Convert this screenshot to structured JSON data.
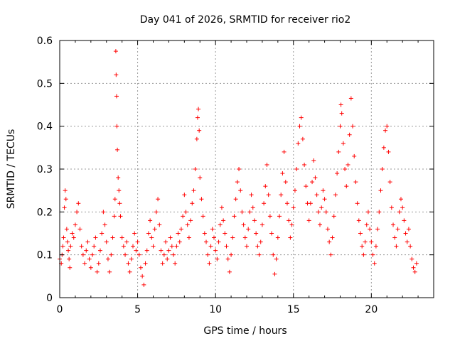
{
  "chart_data": {
    "type": "scatter",
    "title": "Day 041 of 2026, SRMTID for receiver rio2",
    "xlabel": "GPS time / hours",
    "ylabel": "SRMTID / TECUs",
    "xlim": [
      0,
      24
    ],
    "ylim": [
      0,
      0.6
    ],
    "xticks": [
      0,
      5,
      10,
      15,
      20
    ],
    "xtick_labels": [
      "0",
      "5",
      "10",
      "15",
      "20"
    ],
    "yticks": [
      0,
      0.1,
      0.2,
      0.3,
      0.4,
      0.5,
      0.6
    ],
    "ytick_labels": [
      "0",
      "0.1",
      "0.2",
      "0.3",
      "0.4",
      "0.5",
      "0.6"
    ],
    "grid": true,
    "marker": "+",
    "color": "#ff0000",
    "series": [
      {
        "name": "rio2",
        "points": [
          [
            0.0,
            0.09
          ],
          [
            0.1,
            0.08
          ],
          [
            0.15,
            0.1
          ],
          [
            0.2,
            0.12
          ],
          [
            0.25,
            0.14
          ],
          [
            0.3,
            0.21
          ],
          [
            0.35,
            0.25
          ],
          [
            0.4,
            0.23
          ],
          [
            0.45,
            0.16
          ],
          [
            0.5,
            0.13
          ],
          [
            0.55,
            0.11
          ],
          [
            0.6,
            0.09
          ],
          [
            0.65,
            0.07
          ],
          [
            0.7,
            0.12
          ],
          [
            0.8,
            0.15
          ],
          [
            0.9,
            0.14
          ],
          [
            1.0,
            0.17
          ],
          [
            1.1,
            0.2
          ],
          [
            1.2,
            0.22
          ],
          [
            1.3,
            0.16
          ],
          [
            1.4,
            0.12
          ],
          [
            1.5,
            0.1
          ],
          [
            1.6,
            0.08
          ],
          [
            1.7,
            0.11
          ],
          [
            1.8,
            0.13
          ],
          [
            1.9,
            0.09
          ],
          [
            2.0,
            0.07
          ],
          [
            2.1,
            0.1
          ],
          [
            2.2,
            0.12
          ],
          [
            2.3,
            0.14
          ],
          [
            2.4,
            0.06
          ],
          [
            2.5,
            0.08
          ],
          [
            2.6,
            0.11
          ],
          [
            2.7,
            0.15
          ],
          [
            2.8,
            0.2
          ],
          [
            2.9,
            0.17
          ],
          [
            3.0,
            0.13
          ],
          [
            3.1,
            0.09
          ],
          [
            3.2,
            0.06
          ],
          [
            3.3,
            0.1
          ],
          [
            3.4,
            0.14
          ],
          [
            3.5,
            0.19
          ],
          [
            3.55,
            0.23
          ],
          [
            3.6,
            0.575
          ],
          [
            3.62,
            0.52
          ],
          [
            3.65,
            0.47
          ],
          [
            3.67,
            0.4
          ],
          [
            3.7,
            0.345
          ],
          [
            3.75,
            0.28
          ],
          [
            3.8,
            0.25
          ],
          [
            3.85,
            0.22
          ],
          [
            3.9,
            0.19
          ],
          [
            4.0,
            0.14
          ],
          [
            4.1,
            0.12
          ],
          [
            4.2,
            0.1
          ],
          [
            4.3,
            0.13
          ],
          [
            4.4,
            0.08
          ],
          [
            4.5,
            0.06
          ],
          [
            4.6,
            0.09
          ],
          [
            4.7,
            0.12
          ],
          [
            4.8,
            0.15
          ],
          [
            4.9,
            0.11
          ],
          [
            5.0,
            0.13
          ],
          [
            5.1,
            0.1
          ],
          [
            5.2,
            0.07
          ],
          [
            5.3,
            0.05
          ],
          [
            5.4,
            0.03
          ],
          [
            5.5,
            0.08
          ],
          [
            5.6,
            0.11
          ],
          [
            5.7,
            0.15
          ],
          [
            5.8,
            0.18
          ],
          [
            5.9,
            0.14
          ],
          [
            6.0,
            0.12
          ],
          [
            6.1,
            0.16
          ],
          [
            6.2,
            0.2
          ],
          [
            6.3,
            0.23
          ],
          [
            6.4,
            0.17
          ],
          [
            6.5,
            0.11
          ],
          [
            6.6,
            0.08
          ],
          [
            6.7,
            0.1
          ],
          [
            6.8,
            0.13
          ],
          [
            6.9,
            0.09
          ],
          [
            7.0,
            0.11
          ],
          [
            7.1,
            0.14
          ],
          [
            7.2,
            0.12
          ],
          [
            7.3,
            0.1
          ],
          [
            7.4,
            0.08
          ],
          [
            7.5,
            0.12
          ],
          [
            7.6,
            0.15
          ],
          [
            7.7,
            0.13
          ],
          [
            7.8,
            0.16
          ],
          [
            7.9,
            0.19
          ],
          [
            8.0,
            0.24
          ],
          [
            8.1,
            0.2
          ],
          [
            8.2,
            0.17
          ],
          [
            8.3,
            0.14
          ],
          [
            8.4,
            0.18
          ],
          [
            8.5,
            0.22
          ],
          [
            8.6,
            0.25
          ],
          [
            8.7,
            0.3
          ],
          [
            8.8,
            0.37
          ],
          [
            8.85,
            0.42
          ],
          [
            8.9,
            0.44
          ],
          [
            8.95,
            0.39
          ],
          [
            9.0,
            0.28
          ],
          [
            9.1,
            0.23
          ],
          [
            9.2,
            0.19
          ],
          [
            9.3,
            0.15
          ],
          [
            9.4,
            0.13
          ],
          [
            9.5,
            0.1
          ],
          [
            9.6,
            0.08
          ],
          [
            9.7,
            0.12
          ],
          [
            9.8,
            0.16
          ],
          [
            9.9,
            0.14
          ],
          [
            10.0,
            0.11
          ],
          [
            10.1,
            0.09
          ],
          [
            10.2,
            0.13
          ],
          [
            10.3,
            0.17
          ],
          [
            10.4,
            0.21
          ],
          [
            10.5,
            0.18
          ],
          [
            10.6,
            0.15
          ],
          [
            10.7,
            0.12
          ],
          [
            10.8,
            0.09
          ],
          [
            10.9,
            0.06
          ],
          [
            11.0,
            0.1
          ],
          [
            11.1,
            0.14
          ],
          [
            11.2,
            0.19
          ],
          [
            11.3,
            0.23
          ],
          [
            11.4,
            0.27
          ],
          [
            11.5,
            0.3
          ],
          [
            11.6,
            0.25
          ],
          [
            11.7,
            0.2
          ],
          [
            11.8,
            0.17
          ],
          [
            11.9,
            0.14
          ],
          [
            12.0,
            0.12
          ],
          [
            12.1,
            0.16
          ],
          [
            12.2,
            0.2
          ],
          [
            12.3,
            0.24
          ],
          [
            12.4,
            0.21
          ],
          [
            12.5,
            0.18
          ],
          [
            12.6,
            0.15
          ],
          [
            12.7,
            0.12
          ],
          [
            12.8,
            0.1
          ],
          [
            12.9,
            0.13
          ],
          [
            13.0,
            0.17
          ],
          [
            13.1,
            0.22
          ],
          [
            13.2,
            0.26
          ],
          [
            13.3,
            0.31
          ],
          [
            13.4,
            0.24
          ],
          [
            13.5,
            0.19
          ],
          [
            13.6,
            0.15
          ],
          [
            13.7,
            0.1
          ],
          [
            13.8,
            0.055
          ],
          [
            13.9,
            0.09
          ],
          [
            14.0,
            0.14
          ],
          [
            14.1,
            0.19
          ],
          [
            14.2,
            0.24
          ],
          [
            14.3,
            0.29
          ],
          [
            14.4,
            0.34
          ],
          [
            14.5,
            0.27
          ],
          [
            14.6,
            0.22
          ],
          [
            14.7,
            0.18
          ],
          [
            14.8,
            0.14
          ],
          [
            14.9,
            0.17
          ],
          [
            15.0,
            0.21
          ],
          [
            15.1,
            0.25
          ],
          [
            15.2,
            0.3
          ],
          [
            15.3,
            0.36
          ],
          [
            15.4,
            0.4
          ],
          [
            15.5,
            0.42
          ],
          [
            15.6,
            0.37
          ],
          [
            15.7,
            0.31
          ],
          [
            15.8,
            0.26
          ],
          [
            15.9,
            0.22
          ],
          [
            16.0,
            0.18
          ],
          [
            16.1,
            0.22
          ],
          [
            16.2,
            0.27
          ],
          [
            16.3,
            0.32
          ],
          [
            16.4,
            0.28
          ],
          [
            16.5,
            0.24
          ],
          [
            16.6,
            0.2
          ],
          [
            16.7,
            0.17
          ],
          [
            16.8,
            0.21
          ],
          [
            16.9,
            0.25
          ],
          [
            17.0,
            0.23
          ],
          [
            17.1,
            0.2
          ],
          [
            17.2,
            0.16
          ],
          [
            17.3,
            0.13
          ],
          [
            17.4,
            0.1
          ],
          [
            17.5,
            0.14
          ],
          [
            17.6,
            0.19
          ],
          [
            17.7,
            0.24
          ],
          [
            17.8,
            0.29
          ],
          [
            17.9,
            0.34
          ],
          [
            18.0,
            0.4
          ],
          [
            18.05,
            0.45
          ],
          [
            18.1,
            0.43
          ],
          [
            18.2,
            0.36
          ],
          [
            18.3,
            0.3
          ],
          [
            18.4,
            0.26
          ],
          [
            18.5,
            0.31
          ],
          [
            18.6,
            0.38
          ],
          [
            18.7,
            0.465
          ],
          [
            18.8,
            0.4
          ],
          [
            18.9,
            0.33
          ],
          [
            19.0,
            0.27
          ],
          [
            19.1,
            0.22
          ],
          [
            19.2,
            0.18
          ],
          [
            19.3,
            0.15
          ],
          [
            19.4,
            0.12
          ],
          [
            19.5,
            0.1
          ],
          [
            19.6,
            0.13
          ],
          [
            19.7,
            0.17
          ],
          [
            19.8,
            0.2
          ],
          [
            19.9,
            0.16
          ],
          [
            20.0,
            0.13
          ],
          [
            20.1,
            0.1
          ],
          [
            20.2,
            0.08
          ],
          [
            20.3,
            0.12
          ],
          [
            20.4,
            0.16
          ],
          [
            20.5,
            0.2
          ],
          [
            20.6,
            0.25
          ],
          [
            20.7,
            0.3
          ],
          [
            20.8,
            0.35
          ],
          [
            20.9,
            0.39
          ],
          [
            21.0,
            0.4
          ],
          [
            21.1,
            0.34
          ],
          [
            21.2,
            0.27
          ],
          [
            21.3,
            0.21
          ],
          [
            21.4,
            0.17
          ],
          [
            21.5,
            0.14
          ],
          [
            21.6,
            0.12
          ],
          [
            21.7,
            0.16
          ],
          [
            21.8,
            0.2
          ],
          [
            21.9,
            0.23
          ],
          [
            22.0,
            0.21
          ],
          [
            22.1,
            0.18
          ],
          [
            22.2,
            0.15
          ],
          [
            22.3,
            0.13
          ],
          [
            22.4,
            0.16
          ],
          [
            22.5,
            0.12
          ],
          [
            22.6,
            0.09
          ],
          [
            22.7,
            0.07
          ],
          [
            22.8,
            0.06
          ],
          [
            22.9,
            0.08
          ]
        ]
      }
    ]
  }
}
